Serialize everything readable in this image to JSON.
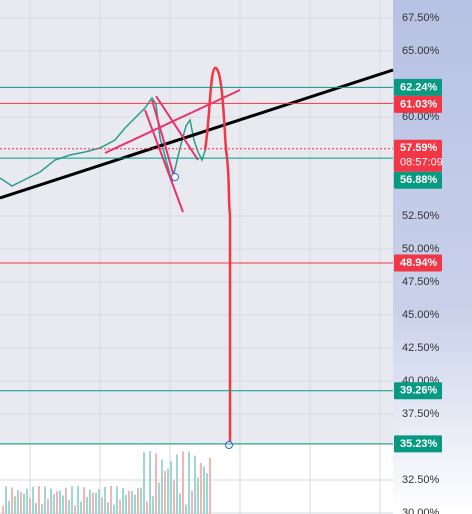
{
  "chart_data": {
    "type": "price-levels",
    "ylim": [
      29.92,
      68.86
    ],
    "yticks": [
      {
        "value": 67.5,
        "label": "67.50%"
      },
      {
        "value": 65,
        "label": "65.00%"
      },
      {
        "value": 60,
        "label": "60.00%"
      },
      {
        "value": 52.5,
        "label": "52.50%"
      },
      {
        "value": 50,
        "label": "50.00%"
      },
      {
        "value": 47.5,
        "label": "47.50%"
      },
      {
        "value": 45,
        "label": "45.00%"
      },
      {
        "value": 42.5,
        "label": "42.50%"
      },
      {
        "value": 40,
        "label": "40.00%"
      },
      {
        "value": 37.5,
        "label": "37.50%"
      },
      {
        "value": 32.5,
        "label": "32.50%"
      },
      {
        "value": 30,
        "label": "30.00%"
      }
    ],
    "grid": true,
    "levels": [
      {
        "value": 62.24,
        "label": "62.24%",
        "color": "#089981",
        "style": "solid"
      },
      {
        "value": 61.03,
        "label": "61.03%",
        "color": "#f23645",
        "style": "solid"
      },
      {
        "value": 57.59,
        "label": "57.59%",
        "color": "#f23645",
        "style": "dotted",
        "countdown": "08:57:09"
      },
      {
        "value": 56.88,
        "label": "56.88%",
        "color": "#089981",
        "style": "solid"
      },
      {
        "value": 48.94,
        "label": "48.94%",
        "color": "#f23645",
        "style": "solid"
      },
      {
        "value": 39.26,
        "label": "39.26%",
        "color": "#089981",
        "style": "solid"
      },
      {
        "value": 35.23,
        "label": "35.23%",
        "color": "#089981",
        "style": "solid"
      }
    ]
  }
}
